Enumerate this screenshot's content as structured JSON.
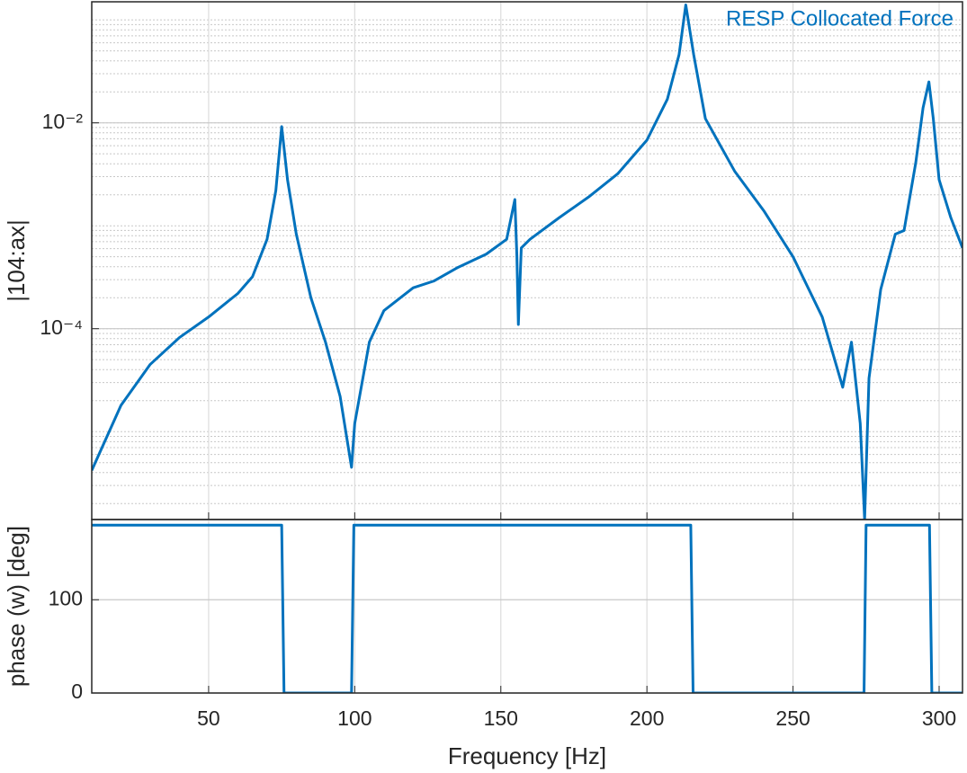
{
  "chart_data": [
    {
      "type": "line",
      "ylabel": "|104:ax|",
      "x": [
        10,
        20,
        30,
        40,
        50,
        60,
        65,
        70,
        73,
        75,
        77,
        80,
        85,
        90,
        95,
        98.9,
        100,
        105,
        110,
        120,
        127,
        135,
        145,
        152,
        154.8,
        155.5,
        156,
        157,
        160,
        170,
        180,
        190,
        200,
        207,
        211,
        213.3,
        216,
        220,
        230,
        240,
        250,
        260,
        267,
        270,
        273,
        274.5,
        276,
        280,
        285,
        288,
        292,
        294.5,
        296.5,
        298,
        300,
        304,
        308
      ],
      "series": [
        {
          "name": "RESP  Collocated Force",
          "color": "#0072bd",
          "values": [
            4.2e-06,
            1.8e-05,
            4.5e-05,
            8.2e-05,
            0.00013,
            0.00022,
            0.00032,
            0.00074,
            0.0022,
            0.0092,
            0.0028,
            0.00083,
            0.0002,
            7.4e-05,
            2.2e-05,
            4.5e-06,
            1.2e-05,
            7.4e-05,
            0.00015,
            0.00025,
            0.00029,
            0.00039,
            0.00053,
            0.00074,
            0.0018,
            0.0005,
            0.00011,
            0.00061,
            0.00074,
            0.0012,
            0.0019,
            0.0032,
            0.0068,
            0.017,
            0.046,
            0.14,
            0.046,
            0.011,
            0.0034,
            0.0014,
            0.0005,
            0.00013,
            2.7e-05,
            7.4e-05,
            1.2e-05,
            1.4e-06,
            3.3e-05,
            0.00024,
            0.00083,
            0.0009,
            0.0041,
            0.014,
            0.025,
            0.011,
            0.0028,
            0.0012,
            0.00061
          ]
        }
      ],
      "xlim": [
        10,
        308
      ],
      "xticks": [
        50,
        100,
        150,
        200,
        250,
        300
      ],
      "ylim": [
        1.4e-06,
        0.15
      ],
      "yticks": [
        {
          "value": 0.0001,
          "label": "10⁻⁴"
        },
        {
          "value": 0.01,
          "label": "10⁻²"
        }
      ],
      "yscale": "log",
      "grid": true,
      "minor_grid": true,
      "legend": "top-right"
    },
    {
      "type": "line",
      "xlabel": "Frequency [Hz]",
      "ylabel": "phase (w) [deg]",
      "x": [
        10,
        75,
        75.8,
        98.9,
        99.7,
        215,
        215.8,
        274.3,
        275,
        296.7,
        297.5,
        308
      ],
      "series": [
        {
          "color": "#0072bd",
          "values": [
            180,
            180,
            0,
            0,
            180,
            180,
            0,
            0,
            180,
            180,
            0,
            0
          ]
        }
      ],
      "xlim": [
        10,
        308
      ],
      "xticks": [
        50,
        100,
        150,
        200,
        250,
        300
      ],
      "ylim": [
        0,
        186
      ],
      "yticks": [
        0,
        100
      ],
      "grid": true
    }
  ]
}
